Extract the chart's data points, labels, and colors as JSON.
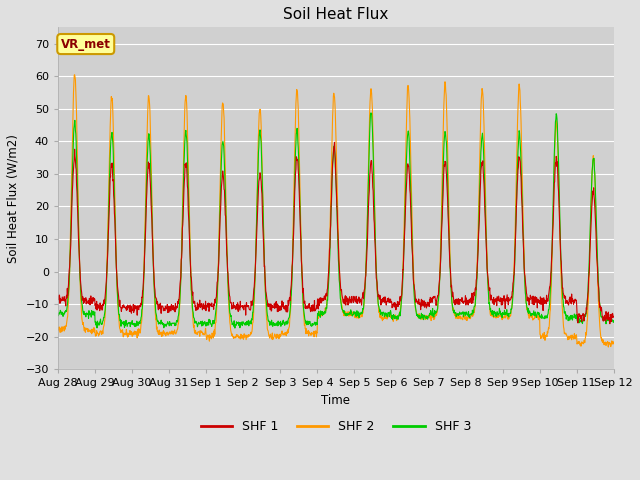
{
  "title": "Soil Heat Flux",
  "ylabel": "Soil Heat Flux (W/m2)",
  "xlabel": "Time",
  "ylim": [
    -30,
    75
  ],
  "yticks": [
    -30,
    -20,
    -10,
    0,
    10,
    20,
    30,
    40,
    50,
    60,
    70
  ],
  "bg_color": "#e0e0e0",
  "plot_bg_color": "#d0d0d0",
  "shf1_color": "#cc0000",
  "shf2_color": "#ff9900",
  "shf3_color": "#00cc00",
  "num_days": 15,
  "label_vr": "VR_met",
  "series_labels": [
    "SHF 1",
    "SHF 2",
    "SHF 3"
  ],
  "x_tick_labels": [
    "Aug 28",
    "Aug 29",
    "Aug 30",
    "Aug 31",
    "Sep 1",
    "Sep 2",
    "Sep 3",
    "Sep 4",
    "Sep 5",
    "Sep 6",
    "Sep 7",
    "Sep 8",
    "Sep 9",
    "Sep 10",
    "Sep 11",
    "Sep 12"
  ],
  "shf2_peaks": [
    61,
    54,
    54,
    54,
    52,
    50,
    56,
    55,
    56,
    57,
    58,
    56,
    57,
    46,
    35
  ],
  "shf3_peaks": [
    46,
    43,
    42,
    43,
    40,
    43,
    43,
    38,
    49,
    43,
    43,
    42,
    42,
    48,
    35
  ],
  "shf1_peaks": [
    36,
    33,
    33,
    33,
    30,
    30,
    35,
    38,
    33,
    33,
    34,
    34,
    35,
    35,
    25
  ],
  "shf2_night": [
    -18,
    -19,
    -19,
    -19,
    -20,
    -20,
    -19,
    -13,
    -14,
    -14,
    -14,
    -14,
    -14,
    -20,
    -22
  ],
  "shf3_night": [
    -13,
    -16,
    -16,
    -16,
    -16,
    -16,
    -16,
    -13,
    -13,
    -14,
    -13,
    -13,
    -13,
    -14,
    -15
  ],
  "shf1_night": [
    -9,
    -11,
    -11,
    -11,
    -11,
    -11,
    -11,
    -9,
    -9,
    -10,
    -9,
    -9,
    -9,
    -9,
    -14
  ]
}
